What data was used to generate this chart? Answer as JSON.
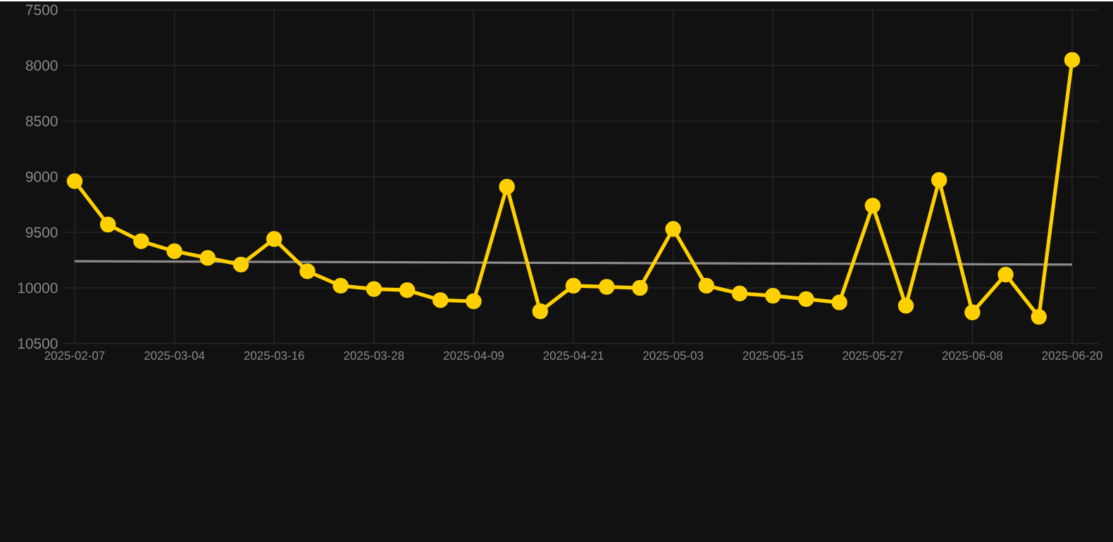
{
  "chart_data": {
    "type": "line",
    "categories": [
      "2025-02-07",
      null,
      null,
      "2025-03-04",
      null,
      null,
      "2025-03-16",
      null,
      null,
      "2025-03-28",
      null,
      null,
      "2025-04-09",
      null,
      null,
      "2025-04-21",
      null,
      null,
      "2025-05-03",
      null,
      null,
      "2025-05-15",
      null,
      null,
      "2025-05-27",
      null,
      null,
      "2025-06-08",
      null,
      null,
      "2025-06-20"
    ],
    "series": [
      {
        "color": "#ffd000",
        "marker": "circle",
        "values": [
          9040,
          9430,
          9580,
          9670,
          9730,
          9790,
          9560,
          9850,
          9980,
          10010,
          10020,
          10110,
          10120,
          9090,
          10210,
          9980,
          9990,
          10000,
          9470,
          9980,
          10050,
          10070,
          10100,
          10130,
          9260,
          10160,
          9030,
          10220,
          9880,
          10260,
          7950
        ]
      },
      {
        "color": "#8c8c8c",
        "marker": "none",
        "values": [
          9760,
          null,
          null,
          null,
          null,
          null,
          null,
          null,
          null,
          null,
          null,
          null,
          null,
          null,
          null,
          null,
          null,
          null,
          null,
          null,
          null,
          null,
          null,
          null,
          null,
          null,
          null,
          null,
          null,
          null,
          9790
        ]
      }
    ],
    "ylim": [
      10500,
      7500
    ],
    "yticks": [
      7500,
      8000,
      8500,
      9000,
      9500,
      10000,
      10500
    ],
    "grid": true,
    "line_style": "solid"
  }
}
